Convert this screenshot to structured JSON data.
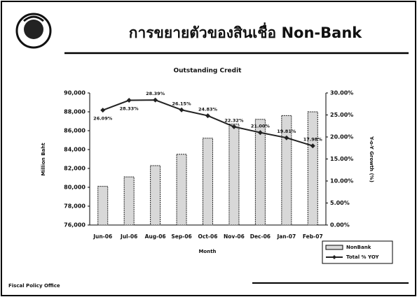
{
  "header": {
    "title": "การขยายตัวของสินเชื่อ Non-Bank"
  },
  "footer": {
    "text": "Fiscal Policy Office"
  },
  "chart_data": {
    "type": "bar_line",
    "title": "Outstanding Credit",
    "x_label": "Month",
    "y_label": "Million Baht",
    "y2_label": "Y-o-Y Growth (%)",
    "categories": [
      "Jun-06",
      "Jul-06",
      "Aug-06",
      "Sep-06",
      "Oct-06",
      "Nov-06",
      "Dec-06",
      "Jan-07",
      "Feb-07"
    ],
    "series": [
      {
        "name": "NonBank",
        "type": "bar",
        "color": "#d8d8d8",
        "values": [
          80100,
          81100,
          82300,
          83500,
          85200,
          86700,
          87200,
          87600,
          88000
        ]
      },
      {
        "name": "Total % YOY",
        "type": "line",
        "axis": "y2",
        "color": "#222222",
        "values": [
          26.09,
          28.33,
          28.39,
          26.15,
          24.83,
          22.32,
          21.0,
          19.81,
          17.98
        ],
        "value_labels": [
          "26.09%",
          "28.33%",
          "28.39%",
          "26.15%",
          "24.83%",
          "22.32%",
          "21.00%",
          "19.81%",
          "17.98%"
        ]
      }
    ],
    "ylim": [
      76000,
      90000
    ],
    "yticks": [
      {
        "value": 76000,
        "label": "76,000"
      },
      {
        "value": 78000,
        "label": "78,000"
      },
      {
        "value": 80000,
        "label": "80,000"
      },
      {
        "value": 82000,
        "label": "82,000"
      },
      {
        "value": 84000,
        "label": "84,000"
      },
      {
        "value": 86000,
        "label": "86,000"
      },
      {
        "value": 88000,
        "label": "88,000"
      },
      {
        "value": 90000,
        "label": "90,000"
      }
    ],
    "y2lim": [
      0,
      30
    ],
    "y2ticks": [
      {
        "value": 0,
        "label": "0.00%"
      },
      {
        "value": 5,
        "label": "5.00%"
      },
      {
        "value": 10,
        "label": "10.00%"
      },
      {
        "value": 15,
        "label": "15.00%"
      },
      {
        "value": 20,
        "label": "20.00%"
      },
      {
        "value": 25,
        "label": "25.00%"
      },
      {
        "value": 30,
        "label": "30.00%"
      }
    ],
    "legend": "bottom-right"
  }
}
